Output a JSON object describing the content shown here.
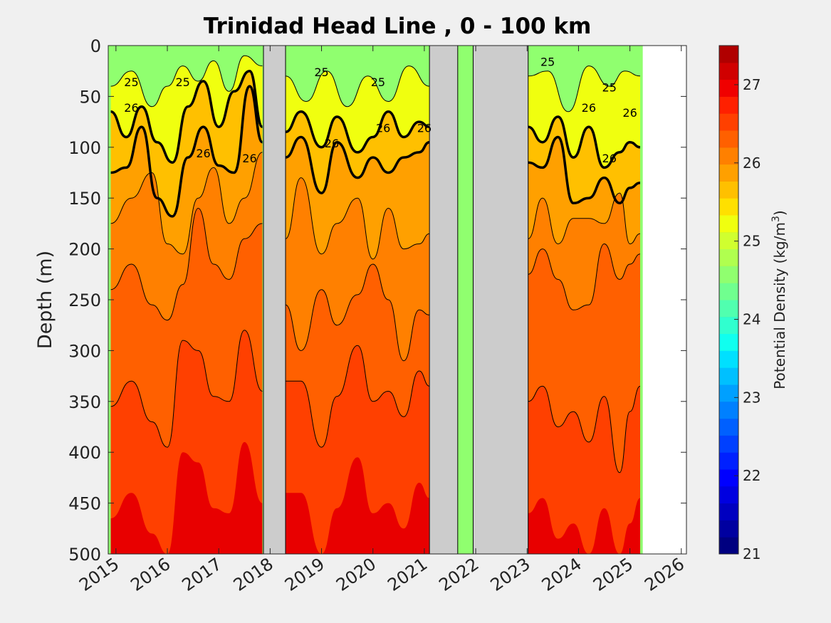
{
  "chart_data": {
    "type": "heatmap",
    "subtype": "filled-contour time-depth section",
    "title": "Trinidad Head Line , 0 - 100 km",
    "xlabel": "",
    "ylabel": "Depth (m)",
    "x_ticks": [
      "2015",
      "2016",
      "2017",
      "2018",
      "2019",
      "2020",
      "2021",
      "2022",
      "2023",
      "2024",
      "2025",
      "2026"
    ],
    "xlim": [
      2014.85,
      2026.1
    ],
    "y_ticks": [
      "0",
      "50",
      "100",
      "150",
      "200",
      "250",
      "300",
      "350",
      "400",
      "450",
      "500"
    ],
    "ylim": [
      0,
      500
    ],
    "y_reversed": true,
    "colorbar": {
      "label_prefix": "Potential Density (kg/m",
      "label_sup": "3",
      "label_suffix": ")",
      "ticks": [
        "21",
        "22",
        "23",
        "24",
        "25",
        "26",
        "27"
      ],
      "range": [
        21,
        27.5
      ],
      "step": 0.25,
      "colors": [
        "#000080",
        "#0000a0",
        "#0000c0",
        "#0000e0",
        "#0000ff",
        "#0020ff",
        "#0040ff",
        "#0060ff",
        "#0080ff",
        "#00a0ff",
        "#00c0ff",
        "#00e0ff",
        "#10ffef",
        "#30ffcf",
        "#50ffaf",
        "#70ff8f",
        "#90ff6f",
        "#b0ff4f",
        "#d0ff2f",
        "#f0ff0f",
        "#ffe000",
        "#ffc000",
        "#ffa000",
        "#ff8000",
        "#ff6000",
        "#ff4000",
        "#ff2000",
        "#f00000",
        "#d00000",
        "#b00000"
      ]
    },
    "gaps_no_data": [
      [
        2017.87,
        2018.3
      ],
      [
        2021.1,
        2021.65
      ],
      [
        2021.95,
        2023.02
      ]
    ],
    "contour_bands": {
      "levels": [
        24.5,
        24.75,
        25,
        25.25,
        25.5,
        25.75,
        26,
        26.25,
        26.5,
        26.75
      ],
      "colors": [
        "#70ff8f",
        "#90ff6f",
        "#b0ff4f",
        "#d0ff2f",
        "#f0ff0f",
        "#ffe000",
        "#ffc000",
        "#ffa000",
        "#ff8000",
        "#ff4000"
      ]
    },
    "isopycnals_depth_m": [
      {
        "sigma": 25.5,
        "x": [
          2014.9,
          2015.3,
          2015.7,
          2016.0,
          2016.3,
          2016.6,
          2016.9,
          2017.2,
          2017.5,
          2017.85
        ],
        "y": [
          40,
          25,
          60,
          40,
          20,
          35,
          15,
          45,
          10,
          20
        ]
      },
      {
        "sigma": 26,
        "emphasis": true,
        "x": [
          2014.9,
          2015.2,
          2015.5,
          2015.8,
          2016.1,
          2016.4,
          2016.7,
          2017.0,
          2017.3,
          2017.6,
          2017.85
        ],
        "y": [
          65,
          90,
          60,
          95,
          115,
          60,
          35,
          80,
          45,
          25,
          80
        ]
      },
      {
        "sigma": 26.25,
        "emphasis": true,
        "x": [
          2014.9,
          2015.2,
          2015.5,
          2015.8,
          2016.1,
          2016.4,
          2016.7,
          2017.0,
          2017.3,
          2017.6,
          2017.85
        ],
        "y": [
          125,
          120,
          80,
          150,
          168,
          110,
          80,
          118,
          125,
          40,
          95
        ]
      },
      {
        "sigma": 26.5,
        "x": [
          2014.9,
          2015.3,
          2015.7,
          2016.0,
          2016.3,
          2016.6,
          2016.9,
          2017.2,
          2017.5,
          2017.85
        ],
        "y": [
          175,
          150,
          125,
          195,
          205,
          150,
          120,
          175,
          150,
          105
        ]
      },
      {
        "sigma": 26.75,
        "x": [
          2014.9,
          2015.3,
          2015.7,
          2016.0,
          2016.3,
          2016.6,
          2016.9,
          2017.2,
          2017.5,
          2017.85
        ],
        "y": [
          240,
          215,
          255,
          270,
          235,
          160,
          215,
          230,
          190,
          175
        ]
      },
      {
        "sigma": 27,
        "x": [
          2014.9,
          2015.3,
          2015.7,
          2016.0,
          2016.3,
          2016.6,
          2016.9,
          2017.2,
          2017.5,
          2017.85
        ],
        "y": [
          355,
          330,
          370,
          395,
          290,
          300,
          345,
          350,
          280,
          340
        ]
      },
      {
        "sigma": 25.5,
        "x": [
          2018.3,
          2018.7,
          2019.1,
          2019.5,
          2019.9,
          2020.3,
          2020.7,
          2021.1
        ],
        "y": [
          30,
          55,
          25,
          60,
          30,
          55,
          20,
          40
        ]
      },
      {
        "sigma": 26,
        "emphasis": true,
        "x": [
          2018.3,
          2018.6,
          2019.0,
          2019.3,
          2019.7,
          2020.0,
          2020.3,
          2020.6,
          2020.9,
          2021.1
        ],
        "y": [
          85,
          65,
          100,
          70,
          105,
          90,
          65,
          90,
          75,
          80
        ]
      },
      {
        "sigma": 26.25,
        "emphasis": true,
        "x": [
          2018.3,
          2018.6,
          2019.0,
          2019.3,
          2019.7,
          2020.0,
          2020.3,
          2020.6,
          2020.9,
          2021.1
        ],
        "y": [
          110,
          90,
          145,
          95,
          130,
          110,
          125,
          110,
          105,
          95
        ]
      },
      {
        "sigma": 26.5,
        "x": [
          2018.3,
          2018.6,
          2019.0,
          2019.3,
          2019.7,
          2020.0,
          2020.3,
          2020.6,
          2020.9,
          2021.1
        ],
        "y": [
          190,
          130,
          205,
          175,
          150,
          210,
          160,
          200,
          195,
          185
        ]
      },
      {
        "sigma": 26.75,
        "x": [
          2018.3,
          2018.6,
          2019.0,
          2019.3,
          2019.7,
          2020.0,
          2020.3,
          2020.6,
          2020.9,
          2021.1
        ],
        "y": [
          255,
          300,
          240,
          275,
          245,
          215,
          250,
          310,
          260,
          265
        ]
      },
      {
        "sigma": 27,
        "x": [
          2018.3,
          2018.6,
          2019.0,
          2019.3,
          2019.7,
          2020.0,
          2020.3,
          2020.6,
          2020.9,
          2021.1
        ],
        "y": [
          330,
          330,
          395,
          345,
          295,
          350,
          340,
          365,
          320,
          335
        ]
      },
      {
        "sigma": 25.5,
        "x": [
          2023.02,
          2023.4,
          2023.8,
          2024.2,
          2024.6,
          2024.9,
          2025.2
        ],
        "y": [
          30,
          25,
          65,
          20,
          40,
          25,
          30
        ]
      },
      {
        "sigma": 26,
        "emphasis": true,
        "x": [
          2023.02,
          2023.3,
          2023.6,
          2023.9,
          2024.2,
          2024.5,
          2024.8,
          2025.0,
          2025.2
        ],
        "y": [
          80,
          95,
          70,
          110,
          80,
          120,
          105,
          95,
          100
        ]
      },
      {
        "sigma": 26.25,
        "emphasis": true,
        "x": [
          2023.02,
          2023.3,
          2023.6,
          2023.9,
          2024.2,
          2024.5,
          2024.8,
          2025.0,
          2025.2
        ],
        "y": [
          115,
          120,
          90,
          155,
          150,
          130,
          155,
          140,
          135
        ]
      },
      {
        "sigma": 26.5,
        "x": [
          2023.02,
          2023.3,
          2023.6,
          2023.9,
          2024.2,
          2024.5,
          2024.8,
          2025.0,
          2025.2
        ],
        "y": [
          190,
          150,
          195,
          170,
          170,
          175,
          145,
          195,
          185
        ]
      },
      {
        "sigma": 26.75,
        "x": [
          2023.02,
          2023.3,
          2023.6,
          2023.9,
          2024.2,
          2024.5,
          2024.8,
          2025.0,
          2025.2
        ],
        "y": [
          225,
          200,
          230,
          260,
          255,
          195,
          230,
          215,
          205
        ]
      },
      {
        "sigma": 27,
        "x": [
          2023.02,
          2023.3,
          2023.6,
          2023.9,
          2024.2,
          2024.5,
          2024.8,
          2025.0,
          2025.2
        ],
        "y": [
          350,
          335,
          375,
          360,
          390,
          345,
          420,
          360,
          335
        ]
      }
    ],
    "contour_labels": [
      {
        "text": "25",
        "x": 2015.3,
        "y": 40
      },
      {
        "text": "26",
        "x": 2015.3,
        "y": 65
      },
      {
        "text": "25",
        "x": 2016.3,
        "y": 40
      },
      {
        "text": "26",
        "x": 2016.7,
        "y": 110
      },
      {
        "text": "26",
        "x": 2017.6,
        "y": 115
      },
      {
        "text": "25",
        "x": 2019.0,
        "y": 30
      },
      {
        "text": "26",
        "x": 2019.2,
        "y": 100
      },
      {
        "text": "26",
        "x": 2020.2,
        "y": 85
      },
      {
        "text": "25",
        "x": 2020.1,
        "y": 40
      },
      {
        "text": "26",
        "x": 2021.0,
        "y": 85
      },
      {
        "text": "25",
        "x": 2023.4,
        "y": 20
      },
      {
        "text": "26",
        "x": 2024.2,
        "y": 65
      },
      {
        "text": "25",
        "x": 2024.6,
        "y": 45
      },
      {
        "text": "26",
        "x": 2024.6,
        "y": 115
      },
      {
        "text": "26",
        "x": 2025.0,
        "y": 70
      }
    ]
  }
}
